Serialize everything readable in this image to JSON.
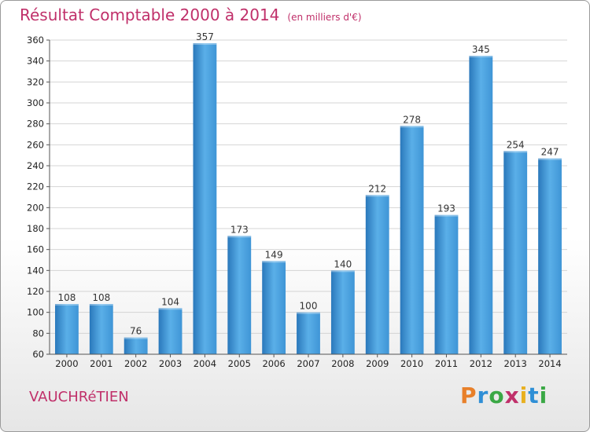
{
  "title": "Résultat Comptable 2000 à 2014",
  "subtitle": "(en milliers d'€)",
  "place": "VAUCHRéTIEN",
  "brand": {
    "letters": [
      "P",
      "r",
      "o",
      "x",
      "i",
      "t",
      "i"
    ],
    "colors": [
      "#e8802a",
      "#2f8fd6",
      "#3aa845",
      "#c0306a",
      "#e8b020",
      "#2f8fd6",
      "#3aa845"
    ]
  },
  "colors": {
    "bar": "#3f95d6",
    "bar_light": "#5aafe8",
    "bar_dark": "#2a78bb",
    "title": "#c0306a",
    "grid": "#d4d4d4"
  },
  "chart_data": {
    "type": "bar",
    "title": "Résultat Comptable 2000 à 2014",
    "subtitle": "(en milliers d'€)",
    "categories": [
      "2000",
      "2001",
      "2002",
      "2003",
      "2004",
      "2005",
      "2006",
      "2007",
      "2008",
      "2009",
      "2010",
      "2011",
      "2012",
      "2013",
      "2014"
    ],
    "values": [
      108,
      108,
      76,
      104,
      357,
      173,
      149,
      100,
      140,
      212,
      278,
      193,
      345,
      254,
      247
    ],
    "ylim": [
      60,
      360
    ],
    "yticks": [
      60,
      80,
      100,
      120,
      140,
      160,
      180,
      200,
      220,
      240,
      260,
      280,
      300,
      320,
      340,
      360
    ],
    "grid": true,
    "data_labels": true
  }
}
